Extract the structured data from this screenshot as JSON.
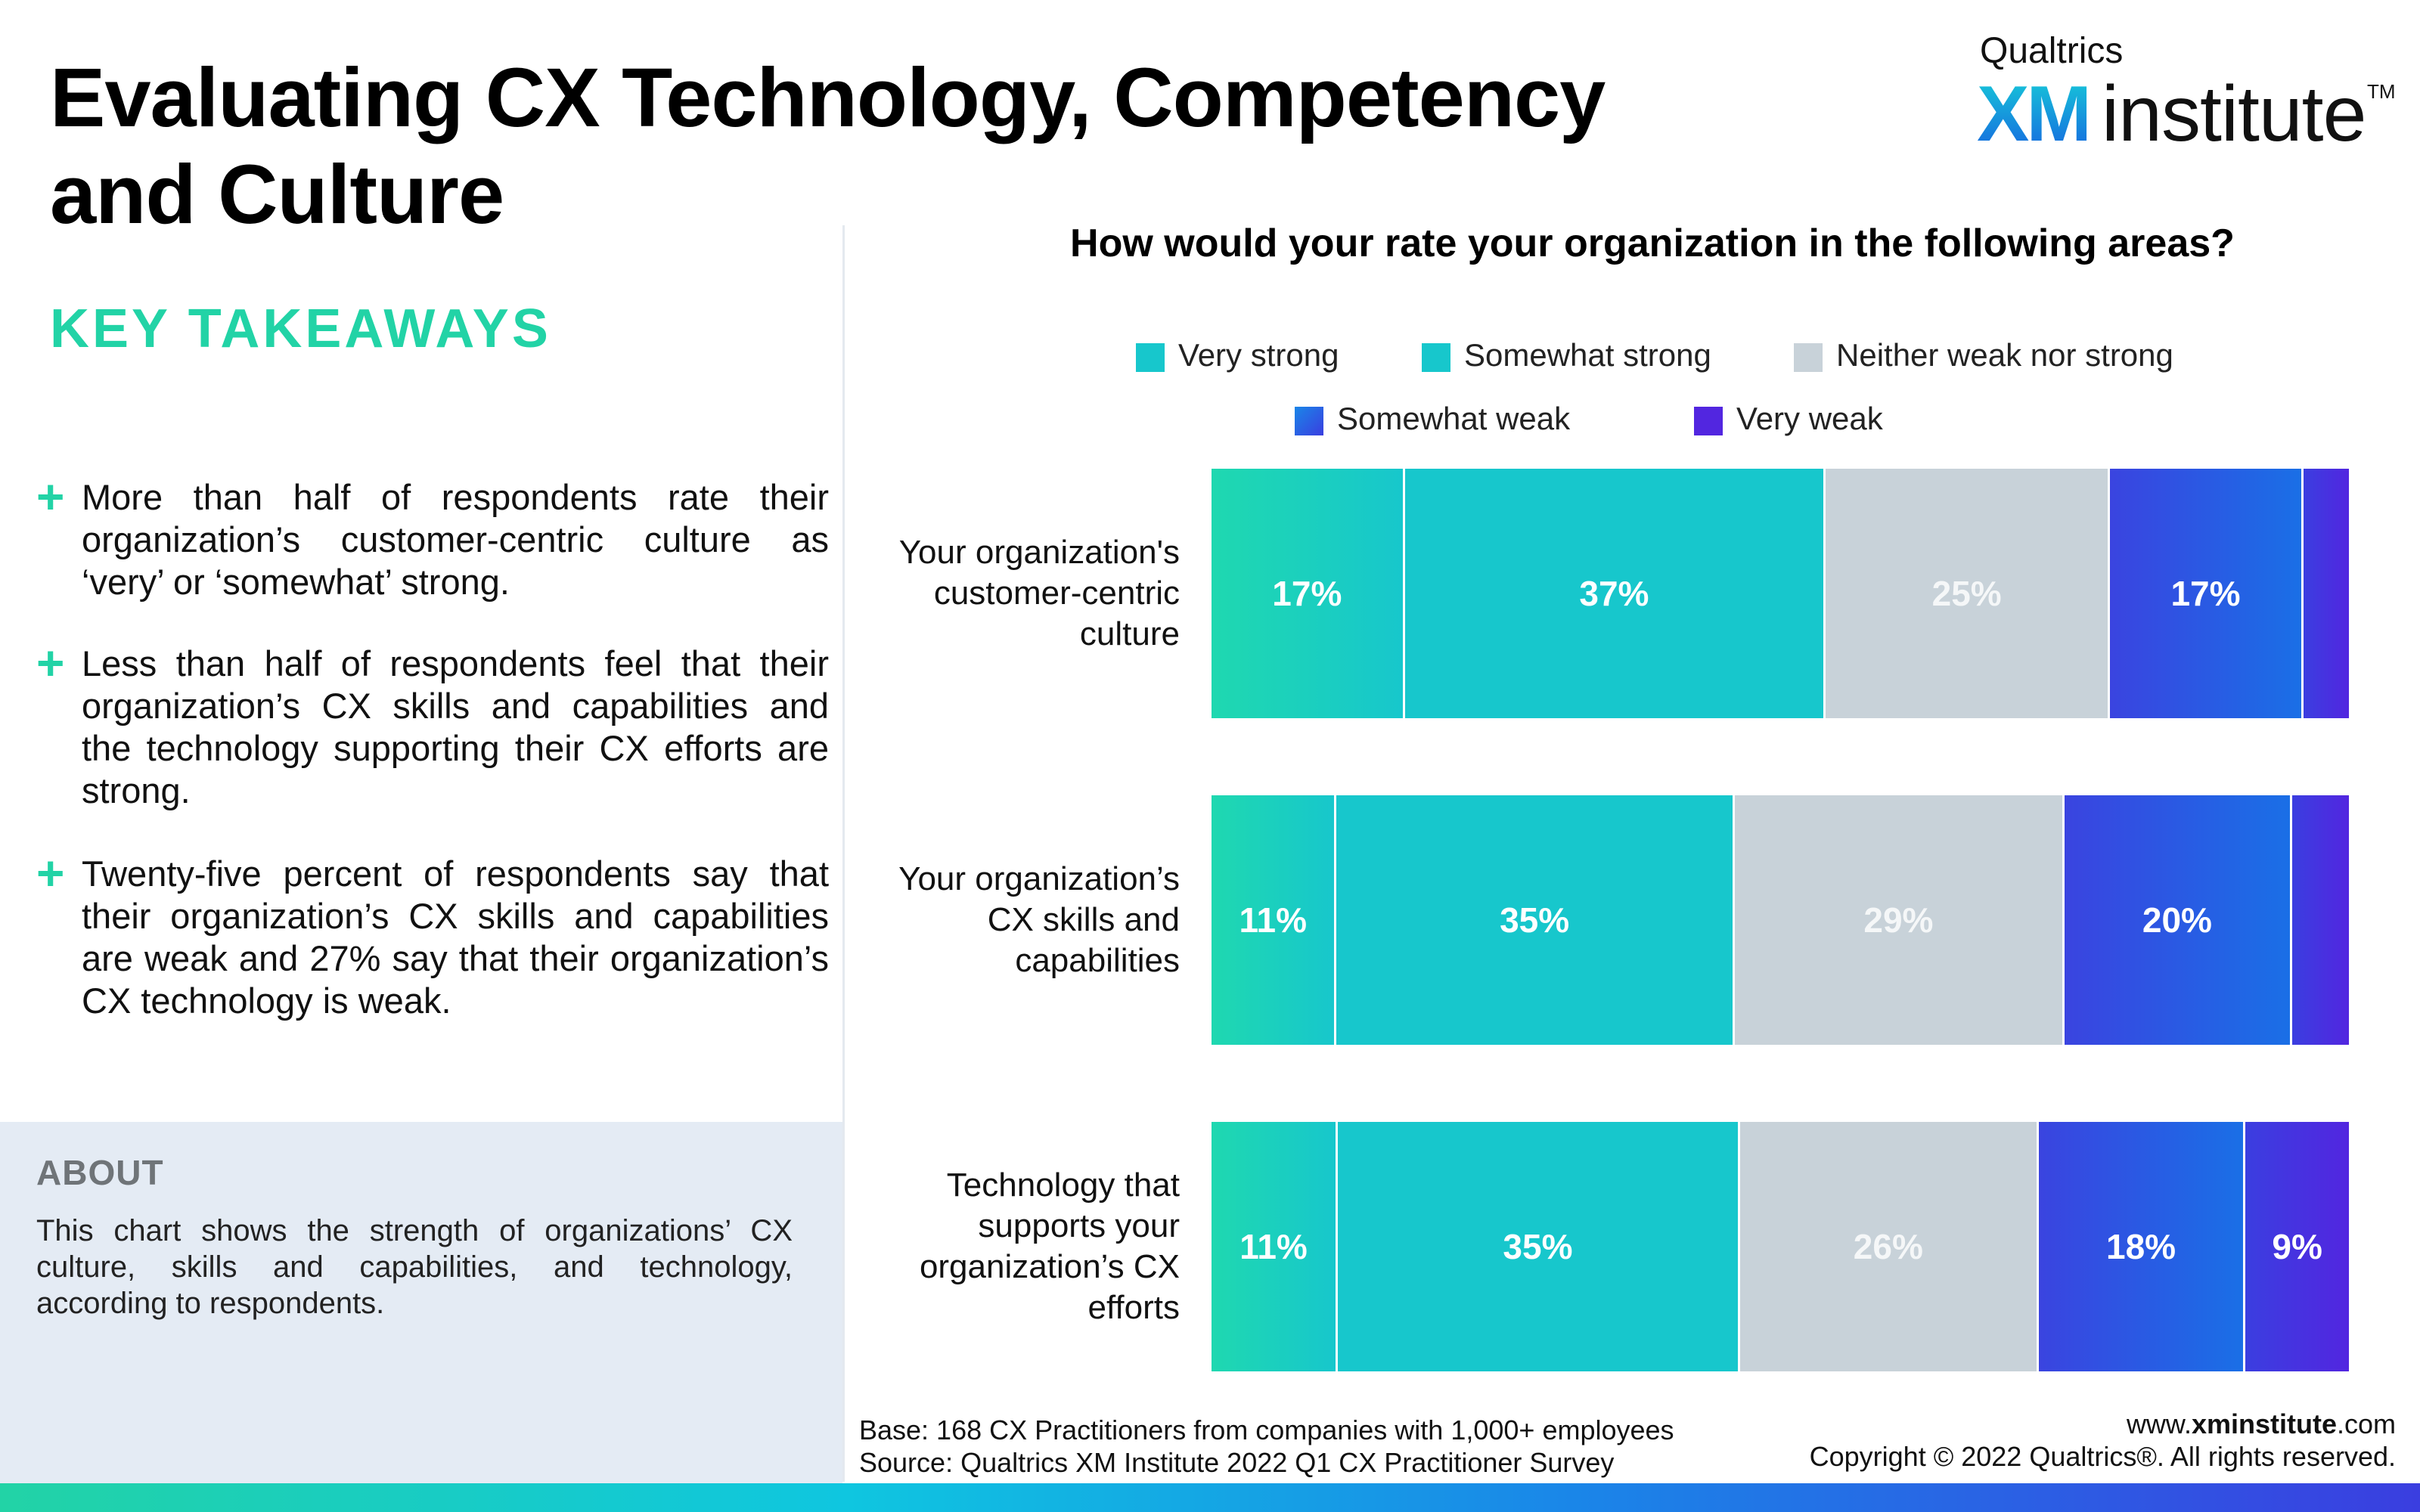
{
  "header": {
    "title_line1": "Evaluating CX Technology, Competency",
    "title_line2": "and Culture",
    "logo_top": "Qualtrics",
    "logo_xm": "XM",
    "logo_institute": "institute",
    "logo_tm": "TM"
  },
  "takeaways": {
    "heading": "KEY TAKEAWAYS",
    "items": [
      "More than half of respondents rate their organization’s customer-centric culture as ‘very’ or ‘somewhat’ strong.",
      "Less than half of respondents feel that their organization’s CX skills and capabilities and the technology supporting their CX efforts are strong.",
      "Twenty-five percent of respondents say that their organization’s CX skills and capabilities are weak and 27% say that their organization’s CX technology is weak."
    ]
  },
  "about": {
    "heading": "ABOUT",
    "text": "This chart shows the strength of organizations’ CX culture, skills and capabilities, and technology, according to respondents."
  },
  "colors": {
    "accent": "#22d3a6",
    "very_strong": "#1fd8b0",
    "somewhat_strong": "#17c7cc",
    "neither": "#c8d2d9",
    "somewhat_weak": "#1a6fe6",
    "very_weak": "#5226e0"
  },
  "chart_data": {
    "type": "bar",
    "orientation": "horizontal",
    "stacked": true,
    "title": "How would your rate your organization in the following areas?",
    "categories": [
      "Your organization's customer-centric culture",
      "Your organization’s CX skills and capabilities",
      "Technology that supports your organization’s CX efforts"
    ],
    "series": [
      {
        "name": "Very strong",
        "values": [
          17,
          11,
          11
        ],
        "labels": [
          "17%",
          "11%",
          "11%"
        ]
      },
      {
        "name": "Somewhat strong",
        "values": [
          37,
          35,
          35
        ],
        "labels": [
          "37%",
          "35%",
          "35%"
        ]
      },
      {
        "name": "Neither weak nor strong",
        "values": [
          25,
          29,
          26
        ],
        "labels": [
          "25%",
          "29%",
          "26%"
        ]
      },
      {
        "name": "Somewhat weak",
        "values": [
          17,
          20,
          18
        ],
        "labels": [
          "17%",
          "20%",
          "18%"
        ]
      },
      {
        "name": "Very weak",
        "values": [
          4,
          5,
          9
        ],
        "labels": [
          "",
          "",
          "9%"
        ]
      }
    ],
    "legend_position": "top",
    "grid": false
  },
  "footer": {
    "base": "Base: 168 CX Practitioners from companies with 1,000+ employees",
    "source": "Source: Qualtrics XM Institute 2022 Q1 CX Practitioner Survey",
    "url_prefix": "www.",
    "url_bold": "xminstitute",
    "url_suffix": ".com",
    "copyright": "Copyright © 2022 Qualtrics®. All rights reserved."
  }
}
